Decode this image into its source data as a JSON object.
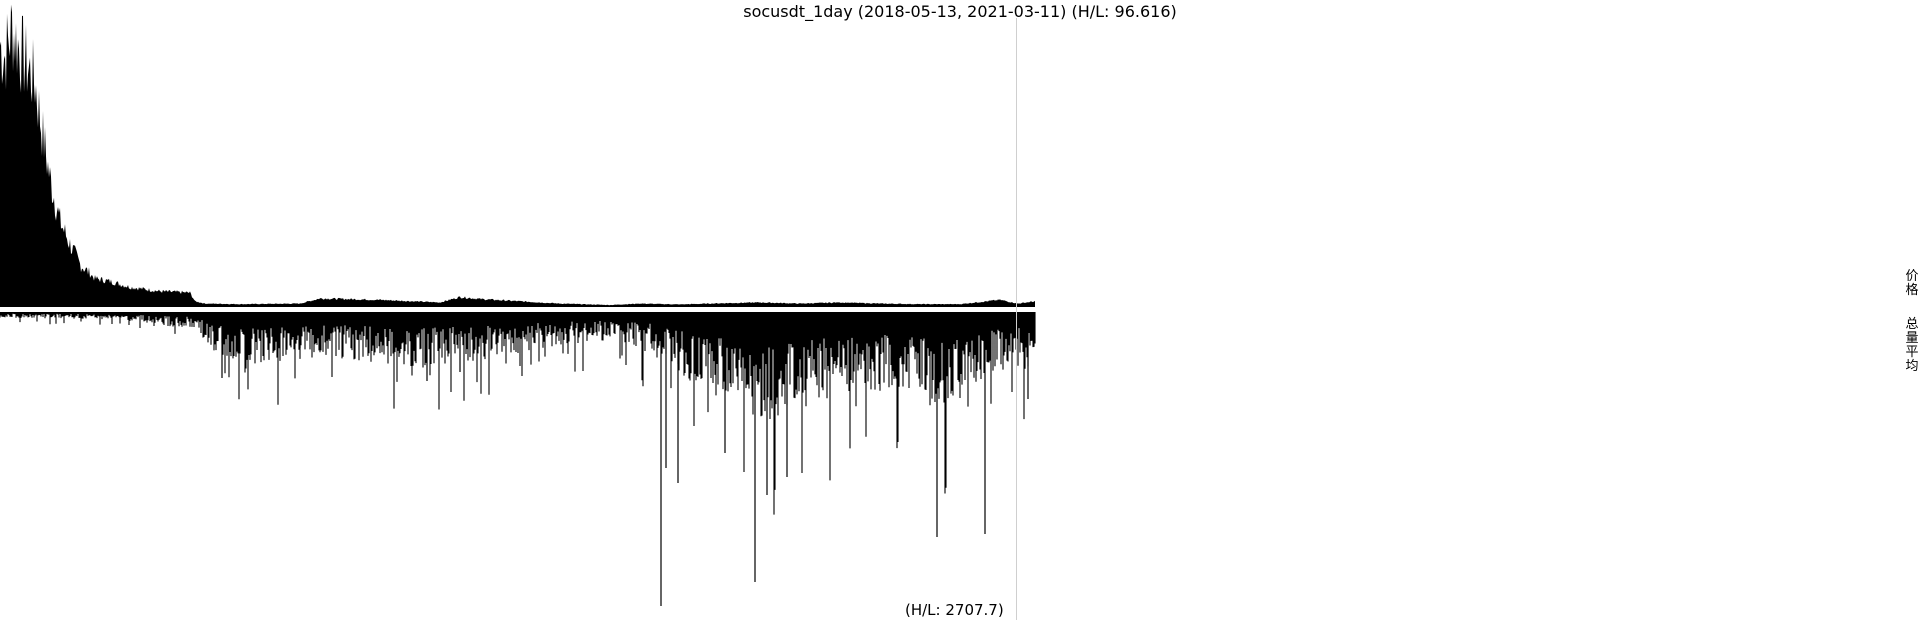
{
  "chart_data": {
    "type": "bar",
    "title": "socusdt_1day (2018-05-13, 2021-03-11) (H/L: 96.616)",
    "x_range": [
      "2018-05-13",
      "2021-03-11"
    ],
    "marker_date": "2021-03-11",
    "top_panel": {
      "name": "价格",
      "hl_ratio": 96.616,
      "points": [
        [
          0,
          0.92
        ],
        [
          5,
          0.88
        ],
        [
          12,
          0.98
        ],
        [
          20,
          0.9
        ],
        [
          28,
          0.84
        ],
        [
          35,
          0.79
        ],
        [
          42,
          0.62
        ],
        [
          50,
          0.45
        ],
        [
          60,
          0.3
        ],
        [
          70,
          0.22
        ],
        [
          80,
          0.15
        ],
        [
          95,
          0.1
        ],
        [
          110,
          0.09
        ],
        [
          130,
          0.07
        ],
        [
          160,
          0.055
        ],
        [
          190,
          0.05
        ],
        [
          195,
          0.02
        ],
        [
          205,
          0.012
        ],
        [
          240,
          0.01
        ],
        [
          300,
          0.012
        ],
        [
          320,
          0.03
        ],
        [
          345,
          0.028
        ],
        [
          380,
          0.025
        ],
        [
          440,
          0.016
        ],
        [
          460,
          0.035
        ],
        [
          480,
          0.028
        ],
        [
          510,
          0.022
        ],
        [
          560,
          0.012
        ],
        [
          610,
          0.007
        ],
        [
          640,
          0.012
        ],
        [
          680,
          0.009
        ],
        [
          720,
          0.013
        ],
        [
          760,
          0.016
        ],
        [
          800,
          0.012
        ],
        [
          840,
          0.016
        ],
        [
          880,
          0.012
        ],
        [
          920,
          0.01
        ],
        [
          960,
          0.01
        ],
        [
          1000,
          0.025
        ],
        [
          1018,
          0.012
        ],
        [
          1035,
          0.02
        ]
      ]
    },
    "bottom_panel": {
      "name": "总量平均",
      "hl_ratio": 2707.7,
      "segments": [
        [
          0,
          0.015
        ],
        [
          120,
          0.02
        ],
        [
          200,
          0.05
        ],
        [
          210,
          0.12
        ],
        [
          260,
          0.14
        ],
        [
          330,
          0.12
        ],
        [
          420,
          0.15
        ],
        [
          500,
          0.12
        ],
        [
          560,
          0.09
        ],
        [
          610,
          0.08
        ],
        [
          650,
          0.11
        ],
        [
          700,
          0.22
        ],
        [
          740,
          0.24
        ],
        [
          760,
          0.3
        ],
        [
          800,
          0.26
        ],
        [
          860,
          0.22
        ],
        [
          900,
          0.2
        ],
        [
          940,
          0.28
        ],
        [
          990,
          0.16
        ],
        [
          1035,
          0.15
        ]
      ],
      "spikes": [
        [
          222,
          0.22
        ],
        [
          300,
          0.12
        ],
        [
          427,
          0.23
        ],
        [
          460,
          0.2
        ],
        [
          661,
          0.98
        ],
        [
          666,
          0.52
        ],
        [
          678,
          0.57
        ],
        [
          725,
          0.47
        ],
        [
          755,
          0.9
        ],
        [
          767,
          0.61
        ],
        [
          787,
          0.55
        ],
        [
          937,
          0.75
        ],
        [
          985,
          0.74
        ],
        [
          1028,
          0.29
        ]
      ]
    },
    "legend": [
      "价格",
      "总量平均"
    ]
  }
}
